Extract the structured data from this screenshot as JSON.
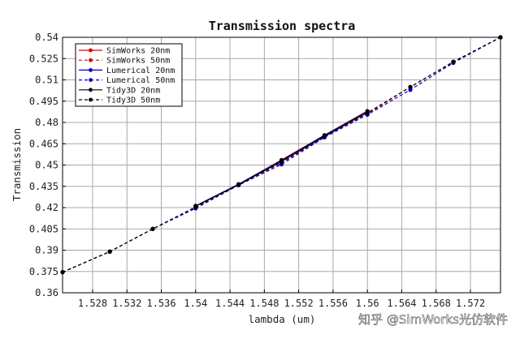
{
  "chart_data": {
    "type": "line",
    "title": "Transmission spectra",
    "xlabel": "lambda (um)",
    "ylabel": "Transmission",
    "xlim": [
      1.5245,
      1.5755
    ],
    "ylim": [
      0.36,
      0.54
    ],
    "xticks": [
      1.528,
      1.532,
      1.536,
      1.54,
      1.544,
      1.548,
      1.552,
      1.556,
      1.56,
      1.564,
      1.568,
      1.572
    ],
    "xtick_labels": [
      "1.528",
      "1.532",
      "1.536",
      "1.54",
      "1.544",
      "1.548",
      "1.552",
      "1.556",
      "1.56",
      "1.564",
      "1.568",
      "1.572"
    ],
    "yticks": [
      0.36,
      0.375,
      0.39,
      0.405,
      0.42,
      0.435,
      0.45,
      0.465,
      0.48,
      0.495,
      0.51,
      0.525,
      0.54
    ],
    "ytick_labels": [
      "0.36",
      "0.375",
      "0.39",
      "0.405",
      "0.42",
      "0.435",
      "0.45",
      "0.465",
      "0.48",
      "0.495",
      "0.51",
      "0.525",
      "0.54"
    ],
    "grid": true,
    "legend_position": "top-left",
    "series": [
      {
        "name": "SimWorks 20nm",
        "color": "#e00000",
        "style": "solid",
        "x": [
          1.54,
          1.545,
          1.55,
          1.555,
          1.56
        ],
        "y": [
          0.421,
          0.4363,
          0.453,
          0.4705,
          0.4875
        ]
      },
      {
        "name": "SimWorks 50nm",
        "color": "#e00000",
        "style": "dashed",
        "x": [
          1.5245,
          1.53,
          1.535,
          1.54,
          1.545,
          1.55,
          1.555,
          1.56,
          1.565,
          1.57,
          1.5755
        ],
        "y": [
          0.3745,
          0.389,
          0.405,
          0.42,
          0.436,
          0.4515,
          0.47,
          0.486,
          0.505,
          0.5225,
          0.54
        ]
      },
      {
        "name": "Lumerical 20nm",
        "color": "#0000cc",
        "style": "solid",
        "x": [
          1.54,
          1.545,
          1.55,
          1.555,
          1.56
        ],
        "y": [
          0.421,
          0.436,
          0.4525,
          0.47,
          0.487
        ]
      },
      {
        "name": "Lumerical 50nm",
        "color": "#0000cc",
        "style": "dashed",
        "x": [
          1.5245,
          1.53,
          1.535,
          1.54,
          1.545,
          1.55,
          1.555,
          1.56,
          1.565,
          1.57,
          1.5755
        ],
        "y": [
          0.3745,
          0.389,
          0.405,
          0.4195,
          0.4358,
          0.4505,
          0.4695,
          0.4855,
          0.503,
          0.522,
          0.54
        ]
      },
      {
        "name": "Tidy3D 20nm",
        "color": "#000000",
        "style": "solid",
        "x": [
          1.54,
          1.545,
          1.55,
          1.555,
          1.56
        ],
        "y": [
          0.4212,
          0.4365,
          0.4535,
          0.471,
          0.488
        ]
      },
      {
        "name": "Tidy3D 50nm",
        "color": "#000000",
        "style": "dashed",
        "x": [
          1.5245,
          1.53,
          1.535,
          1.54,
          1.545,
          1.55,
          1.555,
          1.56,
          1.565,
          1.57,
          1.5755
        ],
        "y": [
          0.3745,
          0.389,
          0.405,
          0.4205,
          0.4362,
          0.452,
          0.4705,
          0.4868,
          0.505,
          0.5228,
          0.54
        ]
      }
    ]
  },
  "watermark": "知乎 @SimWorks光仿软件"
}
